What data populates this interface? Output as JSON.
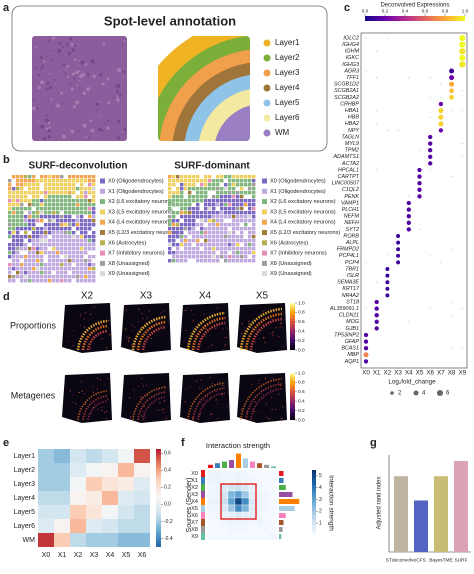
{
  "chart_data": [
    {
      "panel": "a",
      "type": "annotation",
      "title": "Spot-level annotation",
      "legend": [
        {
          "name": "Layer1",
          "color": "#f0b323"
        },
        {
          "name": "Layer2",
          "color": "#7cae3a"
        },
        {
          "name": "Layer3",
          "color": "#f0a04b"
        },
        {
          "name": "Layer4",
          "color": "#a0753a"
        },
        {
          "name": "Layer5",
          "color": "#8fc3e8"
        },
        {
          "name": "Layer6",
          "color": "#f3e9a0"
        },
        {
          "name": "WM",
          "color": "#9b7fc4"
        }
      ]
    },
    {
      "panel": "b",
      "type": "annotation-pair",
      "titles": [
        "SURF-deconvolution",
        "SURF-dominant"
      ],
      "legend": [
        {
          "name": "X0 (Oligodendrocytes)",
          "color": "#7b68c4"
        },
        {
          "name": "X1 (Oligodendrocytes)",
          "color": "#c0a9e0"
        },
        {
          "name": "X2 (L6 excitatory neurons)",
          "color": "#7fb77e"
        },
        {
          "name": "X3 (L5 excitatory neurons)",
          "color": "#f0d060"
        },
        {
          "name": "X4 (L4 excitatory neurons)",
          "color": "#f2a64f"
        },
        {
          "name": "X5 (L2/3 excitatory neurons)",
          "color": "#a27c3b"
        },
        {
          "name": "X6 (Astrocytes)",
          "color": "#b8b050"
        },
        {
          "name": "X7 (Inhibitory neurons)",
          "color": "#e58fb7"
        },
        {
          "name": "X8 (Unassigned)",
          "color": "#9e9e9e"
        },
        {
          "name": "X9 (Unassigned)",
          "color": "#d9d9d9"
        }
      ]
    },
    {
      "panel": "c",
      "type": "dot",
      "colorbar_title": "Deconvolved Expressions",
      "colorbar_ticks": [
        {
          "value": 0,
          "label": "0.0"
        },
        0.2,
        0.4,
        0.6,
        0.8,
        {
          "value": 1,
          "label": "1.0"
        }
      ],
      "clim": [
        0,
        1
      ],
      "categories": [
        "X0",
        "X1",
        "X2",
        "X3",
        "X4",
        "X5",
        "X6",
        "X7",
        "X8",
        "X9"
      ],
      "groups": [
        {
          "genes": [
            "IGLC2",
            "IGHG4",
            "IGHM",
            "IGKC",
            "IGHG3"
          ],
          "fold_change": [
            6,
            6,
            6,
            6,
            6
          ],
          "expression": [
            1,
            1,
            0.95,
            1,
            0.95
          ]
        },
        {
          "genes": [
            "AGR3",
            "TFF1",
            "SCGB1D2",
            "SCGB2A1",
            "SCGB2A2"
          ],
          "fold_change": [
            4,
            4,
            4,
            3.5,
            3.5
          ],
          "expression": [
            0.1,
            0.2,
            0.8,
            0.85,
            0.9
          ]
        },
        {
          "genes": [
            "CRHBP",
            "HBA1",
            "HBB",
            "HBA2",
            "NPY"
          ],
          "fold_change": [
            3,
            4,
            4,
            4,
            3
          ],
          "expression": [
            0.2,
            0.9,
            0.9,
            0.9,
            0.2
          ]
        },
        {
          "genes": [
            "TAGLN",
            "MYL9",
            "TPM2",
            "ADAMTS1",
            "ACTA2"
          ],
          "fold_change": [
            3,
            3,
            3,
            3,
            3
          ],
          "expression": [
            0.15,
            0.15,
            0.15,
            0.15,
            0.15
          ]
        },
        {
          "genes": [
            "HPCAL1",
            "CARTPT",
            "LINC00507",
            "C1QL2",
            "PENK"
          ],
          "fold_change": [
            3,
            3,
            3,
            3,
            3
          ],
          "expression": [
            0.15,
            0.15,
            0.15,
            0.15,
            0.15
          ]
        },
        {
          "genes": [
            "VAMP1",
            "PLCH1",
            "NEFM",
            "NEFH",
            "SYT2"
          ],
          "fold_change": [
            3,
            3,
            3,
            3,
            3
          ],
          "expression": [
            0.15,
            0.15,
            0.15,
            0.15,
            0.15
          ]
        },
        {
          "genes": [
            "RORB",
            "ALPL",
            "FRMPD2",
            "PCP4L1",
            "PCP4"
          ],
          "fold_change": [
            2.5,
            2.5,
            2.5,
            2.5,
            2.5
          ],
          "expression": [
            0.1,
            0.1,
            0.1,
            0.1,
            0.1
          ]
        },
        {
          "genes": [
            "TBR1",
            "ISLR",
            "SEMA3E",
            "KRT17",
            "NR4A2"
          ],
          "fold_change": [
            2.5,
            2.5,
            2.5,
            2.5,
            2.5
          ],
          "expression": [
            0.1,
            0.1,
            0.1,
            0.1,
            0.1
          ]
        },
        {
          "genes": [
            "ST18",
            "AL359091.1",
            "CLDN11",
            "MOG",
            "GJB1"
          ],
          "fold_change": [
            3,
            3,
            3,
            3,
            3
          ],
          "expression": [
            0.15,
            0.15,
            0.15,
            0.15,
            0.15
          ]
        },
        {
          "genes": [
            "TP53INP2",
            "GFAP",
            "BCAS1",
            "MBP",
            "AQP1"
          ],
          "fold_change": [
            3,
            3,
            3,
            4,
            3
          ],
          "expression": [
            0.15,
            0.15,
            0.15,
            0.7,
            0.15
          ]
        }
      ],
      "xlabel": "Log₂fold_change",
      "size_ticks": [
        2,
        4,
        6
      ]
    },
    {
      "panel": "d",
      "type": "image-grid",
      "columns": [
        "X2",
        "X3",
        "X4",
        "X5"
      ],
      "rows": [
        "Proportions",
        "Metagenes"
      ],
      "colorbar_ticks": [
        {
          "value": 0,
          "label": "0.0"
        },
        0.2,
        0.4,
        0.6,
        0.8,
        {
          "value": 1,
          "label": "1.0"
        }
      ],
      "clim": [
        0,
        1
      ]
    },
    {
      "panel": "e",
      "type": "heatmap",
      "rows": [
        "Layer1",
        "Layer2",
        "Layer3",
        "Layer4",
        "Layer5",
        "Layer6",
        "WM"
      ],
      "columns": [
        "X0",
        "X1",
        "X2",
        "X3",
        "X4",
        "X5",
        "X6"
      ],
      "values": [
        [
          -0.2,
          -0.25,
          -0.1,
          -0.15,
          -0.1,
          0.05,
          0.55
        ],
        [
          -0.2,
          -0.2,
          -0.05,
          0.05,
          0.1,
          0.35,
          0.1
        ],
        [
          -0.2,
          -0.2,
          0.05,
          0.3,
          0.2,
          0.15,
          -0.05
        ],
        [
          -0.15,
          -0.15,
          0.1,
          0.15,
          0.35,
          -0.05,
          -0.1
        ],
        [
          -0.1,
          -0.1,
          0.3,
          0.2,
          0.05,
          -0.1,
          -0.15
        ],
        [
          -0.05,
          0.1,
          0.35,
          -0.05,
          -0.1,
          -0.15,
          -0.15
        ],
        [
          0.6,
          0.3,
          -0.15,
          -0.2,
          -0.2,
          -0.25,
          -0.25
        ]
      ],
      "colorbar_ticks": [
        0.6,
        0.4,
        0.2,
        {
          "value": 0,
          "label": "0.0"
        },
        -0.2,
        -0.4
      ],
      "clim": [
        -0.5,
        0.65
      ]
    },
    {
      "panel": "f",
      "type": "interaction",
      "title": "Interaction strength",
      "ylabel": "Sources (Sender)",
      "labels": [
        "X0",
        "X1",
        "X2",
        "X3",
        "X4",
        "X5",
        "X6",
        "X7",
        "X8",
        "X9"
      ],
      "colors": [
        "#e41a1c",
        "#377eb8",
        "#4daf4a",
        "#984ea3",
        "#ff7f00",
        "#a6cee3",
        "#f781bf",
        "#a65628",
        "#999999",
        "#66c2a5"
      ],
      "values": [
        [
          0.3,
          0.3,
          0.2,
          0.2,
          0.3,
          0.2,
          0.1,
          0.1,
          0.1,
          0.1
        ],
        [
          0.3,
          0.4,
          0.3,
          0.3,
          0.4,
          0.3,
          0.2,
          0.1,
          0.1,
          0.1
        ],
        [
          0.2,
          0.3,
          0.8,
          1,
          1.2,
          0.8,
          0.4,
          0.2,
          0.1,
          0.1
        ],
        [
          0.2,
          0.3,
          1,
          2.5,
          3,
          2,
          0.6,
          0.3,
          0.2,
          0.1
        ],
        [
          0.3,
          0.4,
          1.2,
          3,
          5,
          3.5,
          0.8,
          0.3,
          0.2,
          0.1
        ],
        [
          0.2,
          0.3,
          0.8,
          2,
          3.5,
          2.5,
          0.6,
          0.3,
          0.2,
          0.1
        ],
        [
          0.1,
          0.2,
          0.4,
          0.6,
          0.8,
          0.6,
          0.5,
          0.2,
          0.1,
          0.1
        ],
        [
          0.1,
          0.1,
          0.2,
          0.3,
          0.3,
          0.3,
          0.2,
          0.3,
          0.1,
          0.1
        ],
        [
          0.1,
          0.1,
          0.1,
          0.2,
          0.2,
          0.2,
          0.1,
          0.1,
          0.2,
          0.1
        ],
        [
          0.1,
          0.1,
          0.1,
          0.1,
          0.1,
          0.1,
          0.1,
          0.1,
          0.1,
          0.2
        ]
      ],
      "col_strength": [
        1,
        1.5,
        2,
        2.5,
        4.5,
        3,
        2,
        1.5,
        1,
        0.5
      ],
      "row_strength": [
        1,
        1,
        1.5,
        3,
        4.5,
        3.5,
        1.5,
        1,
        0.8,
        0.5
      ],
      "colorbar_title": "Interaction strength",
      "colorbar_ticks": [
        1,
        2,
        3,
        4,
        5
      ],
      "clim": [
        0,
        5.5
      ]
    },
    {
      "panel": "g",
      "type": "bar",
      "ylabel": "Adjusted rand index",
      "categories": [
        "STdeconvolve",
        "CFS",
        "BayesTME",
        "SURF"
      ],
      "values": [
        0.25,
        0.17,
        0.25,
        0.3
      ],
      "colors": [
        "#bfb3a2",
        "#5565c4",
        "#c9bc74",
        "#dba3b3"
      ],
      "ylim": [
        0,
        0.32
      ]
    }
  ]
}
